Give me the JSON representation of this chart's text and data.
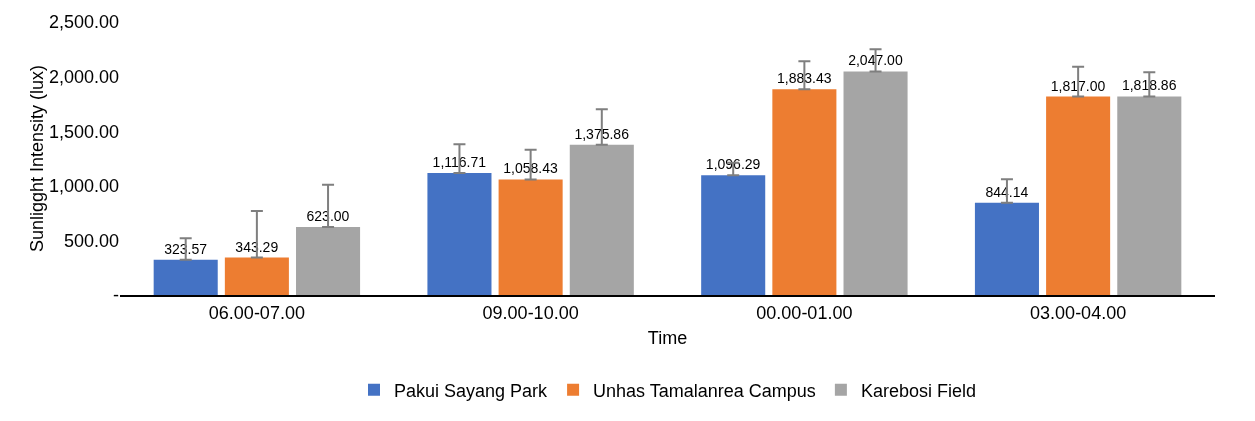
{
  "chart_data": {
    "type": "bar",
    "xlabel": "Time",
    "ylabel": "Sunligght Intensity (lux)",
    "categories": [
      "06.00-07.00",
      "09.00-10.00",
      "00.00-01.00",
      "03.00-04.00"
    ],
    "series": [
      {
        "name": "Pakui Sayang Park",
        "color": "#4472c4",
        "values": [
          323.57,
          1116.71,
          1096.29,
          844.14
        ],
        "value_labels": [
          "323.57",
          "1,116.71",
          "1,096.29",
          "844.14"
        ],
        "errors": [
          [
            323.57,
            520
          ],
          [
            1116.71,
            1380
          ],
          [
            1096.29,
            1210
          ],
          [
            844.14,
            1060
          ]
        ]
      },
      {
        "name": "Unhas Tamalanrea Campus",
        "color": "#ed7d31",
        "values": [
          343.29,
          1058.43,
          1883.43,
          1817.0
        ],
        "value_labels": [
          "343.29",
          "1,058.43",
          "1,883.43",
          "1,817.00"
        ],
        "errors": [
          [
            343.29,
            770
          ],
          [
            1058.43,
            1330
          ],
          [
            1883.43,
            2140
          ],
          [
            1817.0,
            2090
          ]
        ]
      },
      {
        "name": "Karebosi Field",
        "color": "#a5a5a5",
        "values": [
          623.0,
          1375.86,
          2047.0,
          1818.86
        ],
        "value_labels": [
          "623.00",
          "1,375.86",
          "2,047.00",
          "1,818.86"
        ],
        "errors": [
          [
            623.0,
            1010
          ],
          [
            1375.86,
            1700
          ],
          [
            2047.0,
            2250
          ],
          [
            1818.86,
            2040
          ]
        ]
      }
    ],
    "ylim": [
      0,
      2500
    ],
    "yticks": [
      {
        "value": 0,
        "label": "-"
      },
      {
        "value": 500,
        "label": "500.00"
      },
      {
        "value": 1000,
        "label": "1,000.00"
      },
      {
        "value": 1500,
        "label": "1,500.00"
      },
      {
        "value": 2000,
        "label": "2,000.00"
      },
      {
        "value": 2500,
        "label": "2,500.00"
      }
    ],
    "grid": false,
    "legend": "bottom"
  }
}
